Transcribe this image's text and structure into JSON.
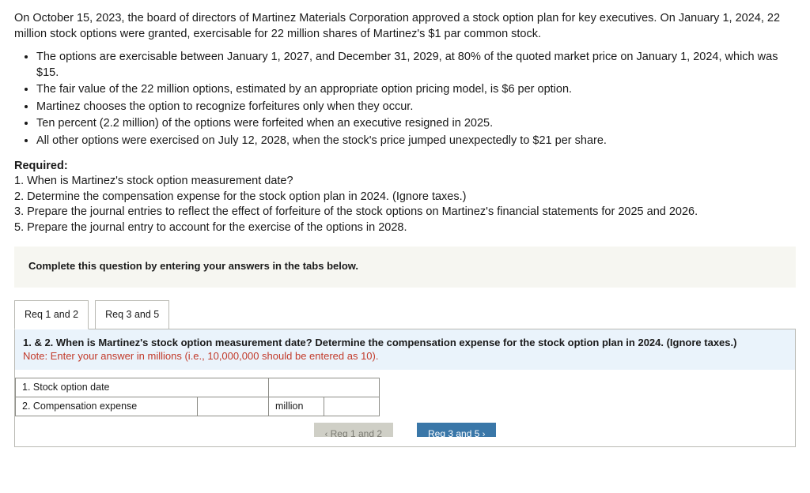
{
  "intro": "On October 15, 2023, the board of directors of Martinez Materials Corporation approved a stock option plan for key executives. On January 1, 2024, 22 million stock options were granted, exercisable for 22 million shares of Martinez's $1 par common stock.",
  "bullets": [
    "The options are exercisable between January 1, 2027, and December 31, 2029, at 80% of the quoted market price on January 1, 2024, which was $15.",
    "The fair value of the 22 million options, estimated by an appropriate option pricing model, is $6 per option.",
    "Martinez chooses the option to recognize forfeitures only when they occur.",
    "Ten percent (2.2 million) of the options were forfeited when an executive resigned in 2025.",
    "All other options were exercised on July 12, 2028, when the stock's price jumped unexpectedly to $21 per share."
  ],
  "required": {
    "heading": "Required:",
    "items": [
      "1. When is Martinez's stock option measurement date?",
      "2. Determine the compensation expense for the stock option plan in 2024. (Ignore taxes.)",
      "3. Prepare the journal entries to reflect the effect of forfeiture of the stock options on Martinez's financial statements for 2025 and 2026.",
      "5. Prepare the journal entry to account for the exercise of the options in 2028."
    ]
  },
  "qbox": "Complete this question by entering your answers in the tabs below.",
  "tabs": {
    "t1": "Req 1 and 2",
    "t2": "Req 3 and 5"
  },
  "panel": {
    "headline": "1. & 2. When is Martinez's stock option measurement date? Determine the compensation expense for the stock option plan in 2024. (Ignore taxes.)",
    "note": "Note: Enter your answer in millions (i.e., 10,000,000 should be entered as 10)."
  },
  "rows": {
    "r1": "1. Stock option date",
    "r2": "2. Compensation expense",
    "unit": "million"
  },
  "nav": {
    "prev": "Req 1 and 2",
    "next": "Req 3 and 5"
  }
}
